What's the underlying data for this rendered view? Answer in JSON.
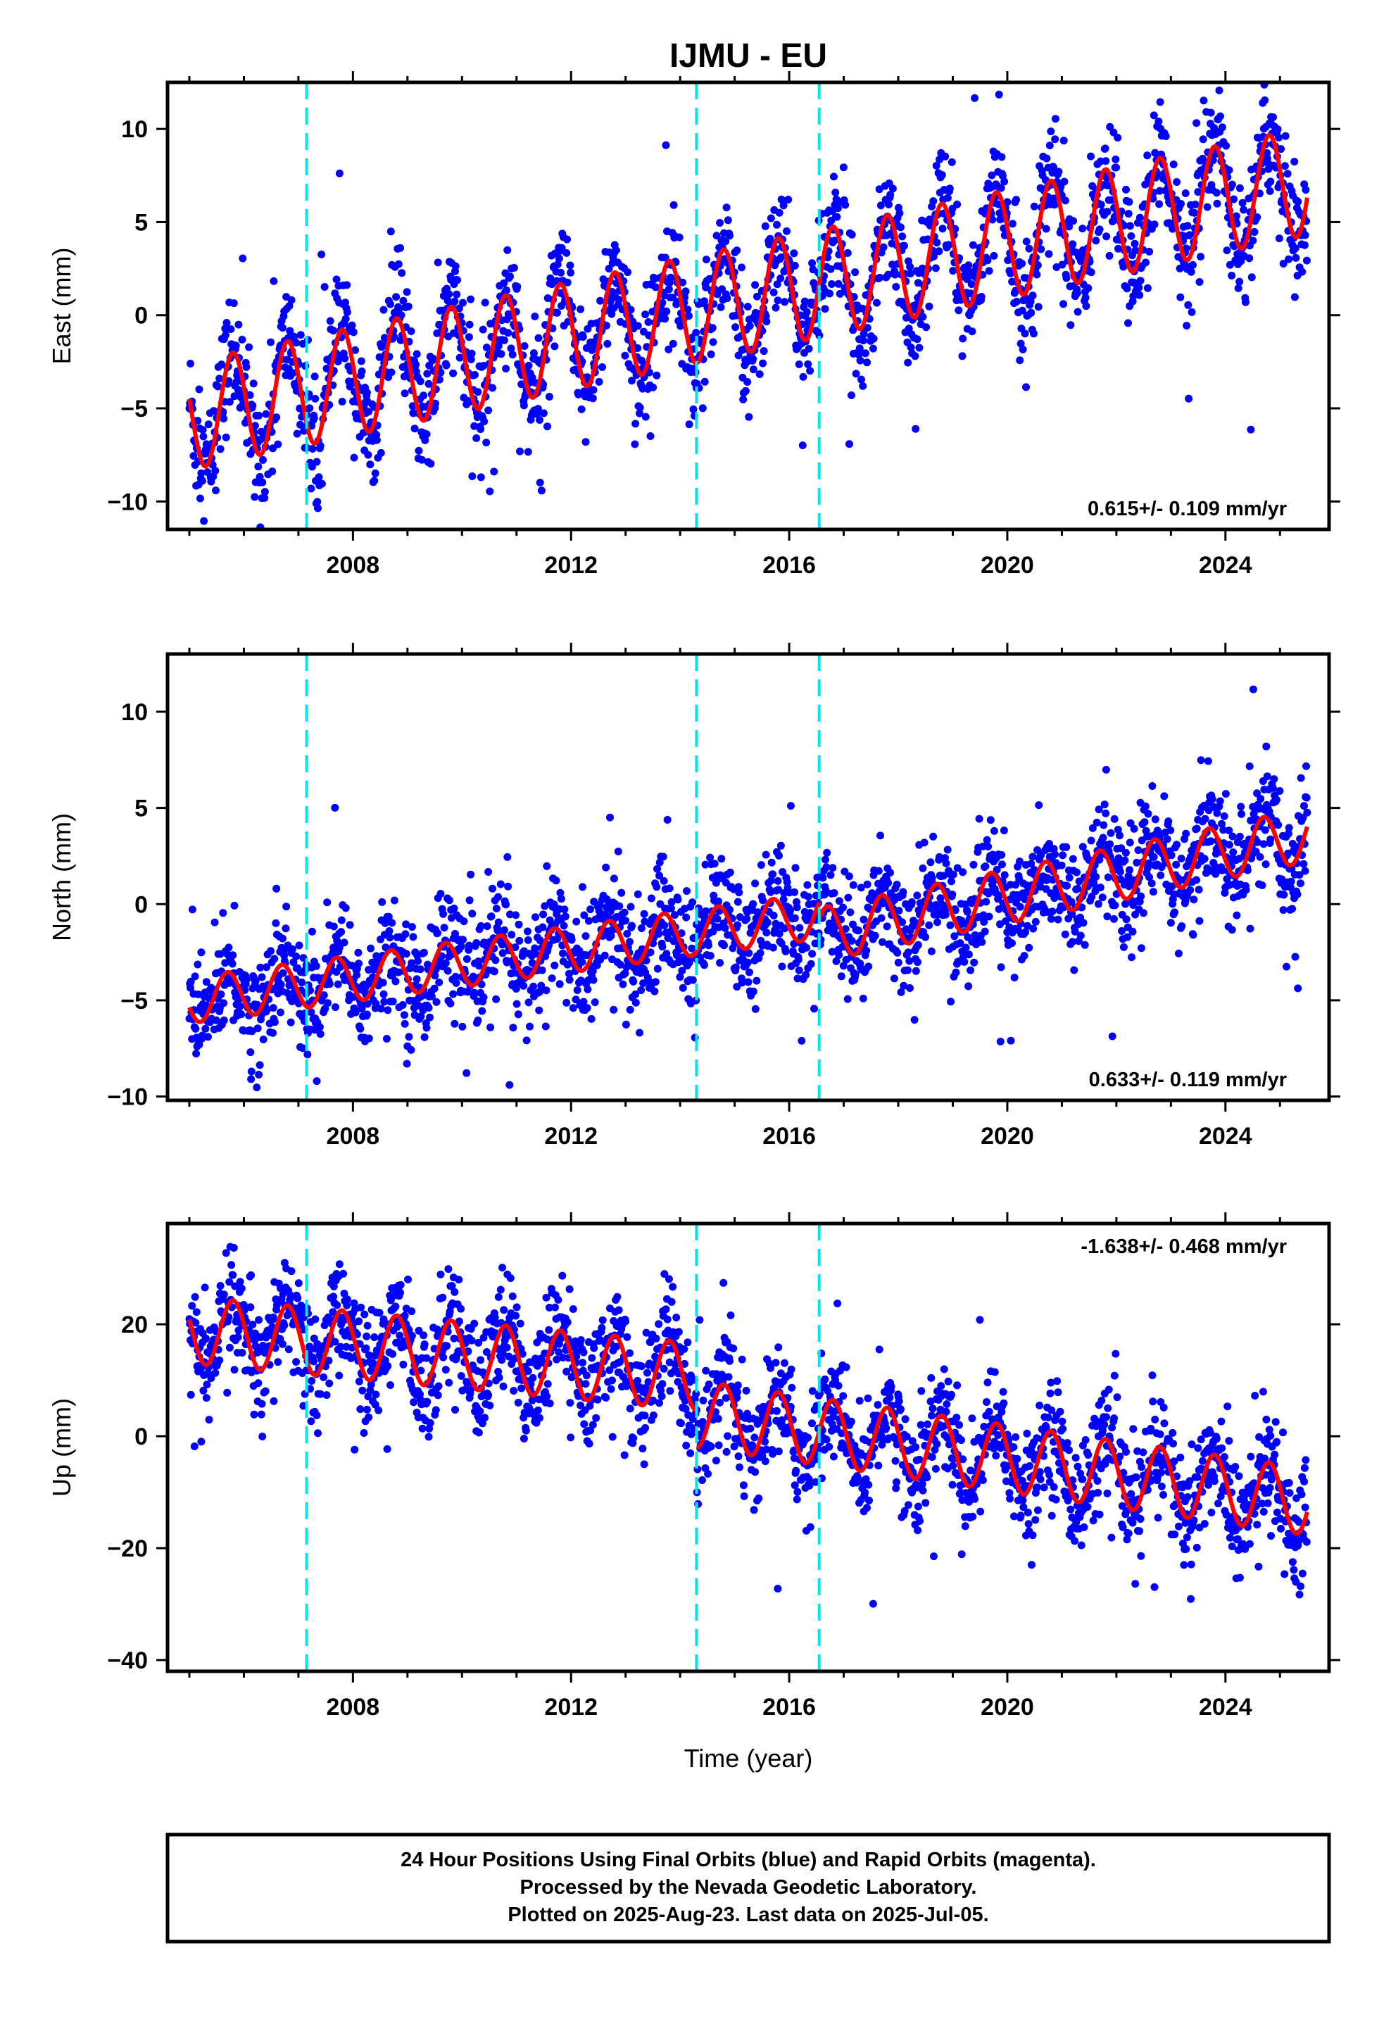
{
  "title": "IJMU - EU",
  "xlabel": "Time (year)",
  "footer": {
    "line1": "24 Hour Positions Using Final Orbits (blue) and Rapid Orbits (magenta).",
    "line2": "Processed by the Nevada Geodetic Laboratory.",
    "line3": "Plotted on 2025-Aug-23. Last data on 2025-Jul-05."
  },
  "colors": {
    "data": "#0000ff",
    "model": "#ff0000",
    "breaks": "#00e5ee",
    "axes": "#000000"
  },
  "chart_data": [
    {
      "type": "scatter",
      "ylabel": "East (mm)",
      "rate_text": "0.615+/- 0.109 mm/yr",
      "xlim": [
        2004.6,
        2025.9
      ],
      "ylim": [
        -11.5,
        12.5
      ],
      "xticks": [
        2008,
        2012,
        2016,
        2020,
        2024
      ],
      "yticks": [
        -10,
        -5,
        0,
        5,
        10
      ],
      "ytick_labels": [
        "−10",
        "−5",
        "0",
        "5",
        "10"
      ],
      "breaks": [
        2007.15,
        2014.3,
        2016.55
      ],
      "series": [
        {
          "start": 2005.0,
          "end": 2025.5,
          "y0": -5.4,
          "trend": 0.615,
          "amp": 2.9,
          "phase": 0.55,
          "scatter": 1.6,
          "model_start": 2005.0,
          "model_end": 2025.5
        }
      ]
    },
    {
      "type": "scatter",
      "ylabel": "North (mm)",
      "rate_text": "0.633+/- 0.119 mm/yr",
      "xlim": [
        2004.6,
        2025.9
      ],
      "ylim": [
        -10.2,
        13.0
      ],
      "xticks": [
        2008,
        2012,
        2016,
        2020,
        2024
      ],
      "yticks": [
        -10,
        -5,
        0,
        5,
        10
      ],
      "ytick_labels": [
        "−10",
        "−5",
        "0",
        "5",
        "10"
      ],
      "breaks": [
        2007.15,
        2014.3,
        2016.55
      ],
      "series": [
        {
          "start": 2005.0,
          "end": 2016.55,
          "y0": -5.0,
          "trend": 0.38,
          "amp": 1.2,
          "phase": 0.45,
          "scatter": 1.5,
          "model_start": 2005.0,
          "model_end": 2016.55
        },
        {
          "start": 2016.55,
          "end": 2025.5,
          "y0": -1.6,
          "trend": 0.58,
          "amp": 1.4,
          "phase": 0.45,
          "scatter": 1.5,
          "model_start": 2016.55,
          "model_end": 2025.5
        }
      ]
    },
    {
      "type": "scatter",
      "ylabel": "Up (mm)",
      "rate_text": "-1.638+/- 0.468 mm/yr",
      "xlim": [
        2004.6,
        2025.9
      ],
      "ylim": [
        -42,
        38
      ],
      "xticks": [
        2008,
        2012,
        2016,
        2020,
        2024
      ],
      "yticks": [
        -40,
        -20,
        0,
        20
      ],
      "ytick_labels": [
        "−40",
        "−20",
        "0",
        "20"
      ],
      "breaks": [
        2007.15,
        2014.3,
        2016.55
      ],
      "series": [
        {
          "start": 2005.0,
          "end": 2014.3,
          "y0": 19.0,
          "trend": -0.9,
          "amp": 6.0,
          "phase": 0.55,
          "scatter": 5.0,
          "model_start": 2005.0,
          "model_end": 2014.3
        },
        {
          "start": 2014.3,
          "end": 2025.5,
          "y0": 4.0,
          "trend": -1.4,
          "amp": 6.0,
          "phase": 0.55,
          "scatter": 5.0,
          "model_start": 2014.3,
          "model_end": 2025.5
        }
      ]
    }
  ]
}
